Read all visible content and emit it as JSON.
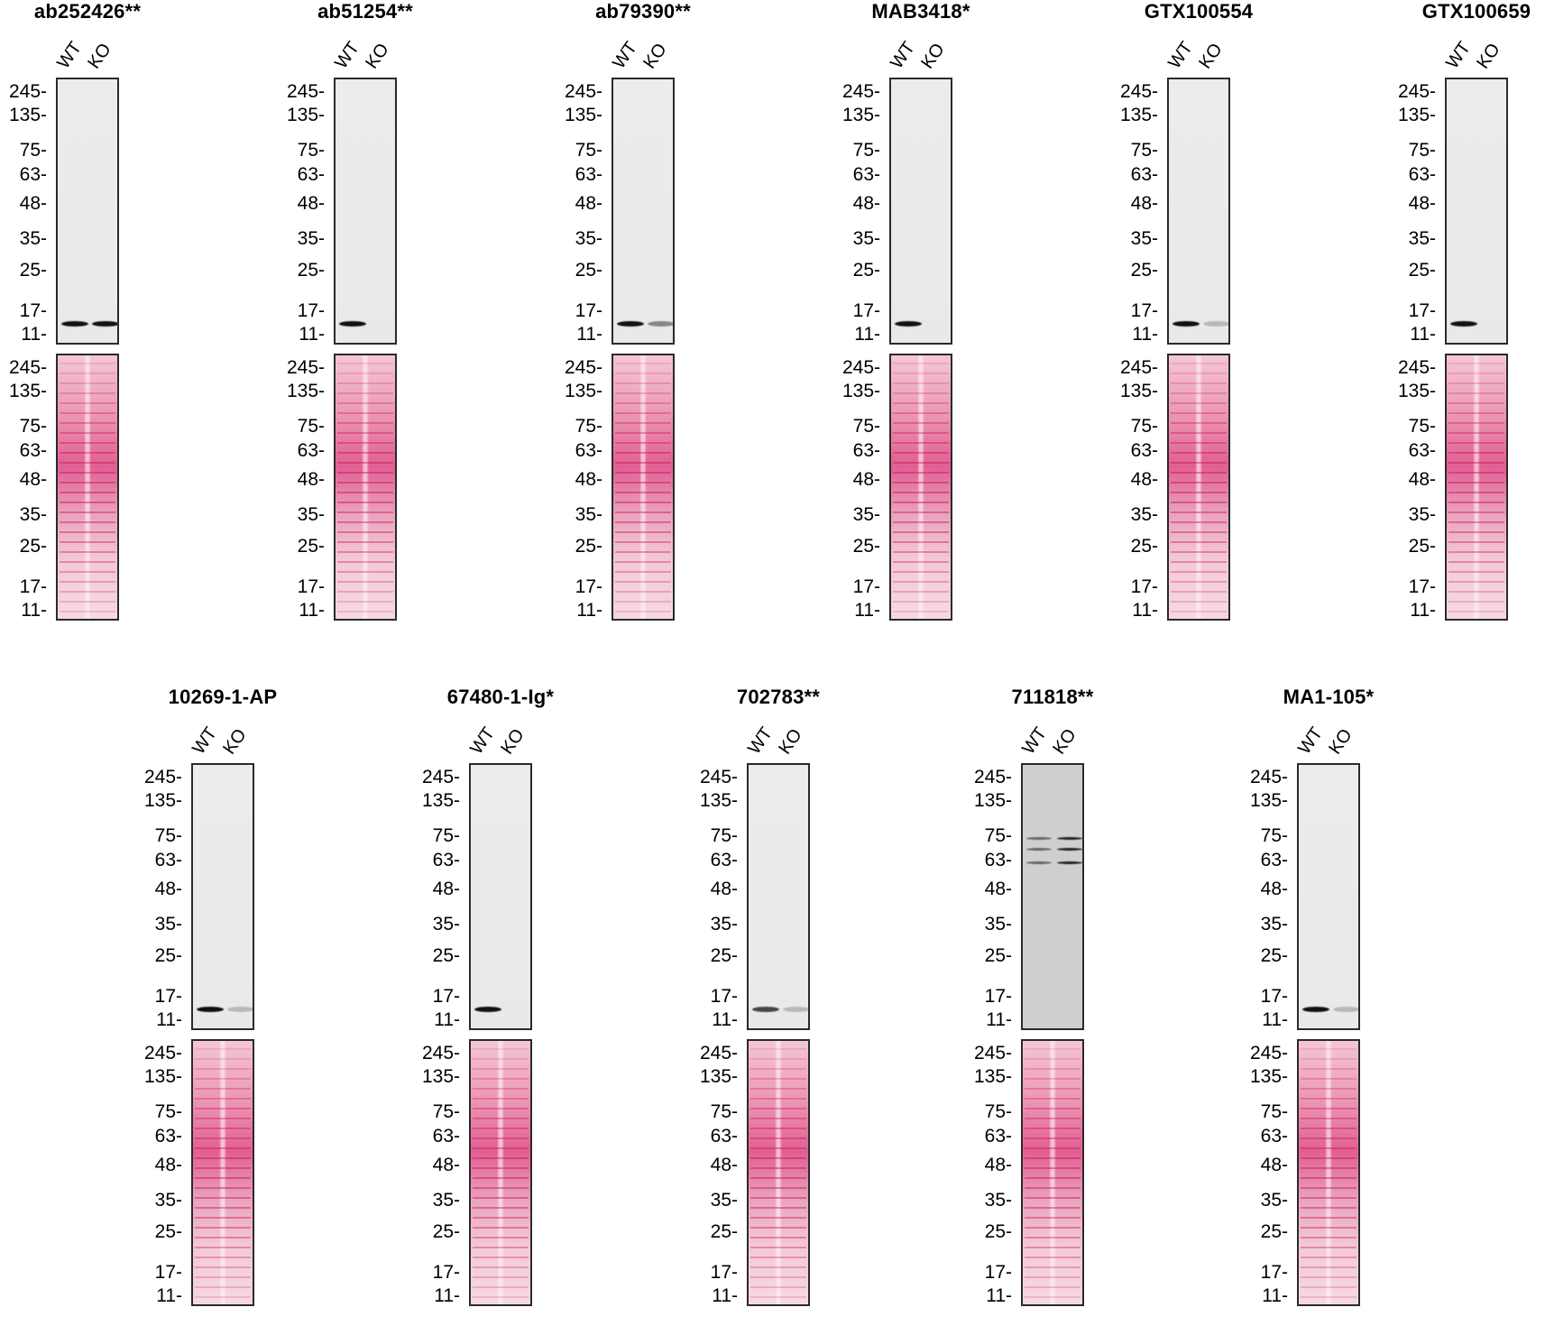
{
  "ladder": [
    "245",
    "135",
    "75",
    "63",
    "48",
    "35",
    "25",
    "17",
    "11"
  ],
  "lane_labels": [
    "WT",
    "KO"
  ],
  "panels": [
    {
      "antibody": "ab252426**",
      "wt_band": "strong",
      "ko_band": "strong"
    },
    {
      "antibody": "ab51254**",
      "wt_band": "strong",
      "ko_band": "none"
    },
    {
      "antibody": "ab79390**",
      "wt_band": "strong",
      "ko_band": "weak"
    },
    {
      "antibody": "MAB3418*",
      "wt_band": "strong",
      "ko_band": "none"
    },
    {
      "antibody": "GTX100554",
      "wt_band": "strong",
      "ko_band": "faint"
    },
    {
      "antibody": "GTX100659",
      "wt_band": "strong",
      "ko_band": "none"
    },
    {
      "antibody": "10269-1-AP",
      "wt_band": "strong",
      "ko_band": "faint"
    },
    {
      "antibody": "67480-1-Ig*",
      "wt_band": "strong",
      "ko_band": "none"
    },
    {
      "antibody": "702783**",
      "wt_band": "medium",
      "ko_band": "faint"
    },
    {
      "antibody": "711818**",
      "wt_band": "none",
      "ko_band": "none",
      "nonspecific_bands": true
    },
    {
      "antibody": "MA1-105*",
      "wt_band": "strong",
      "ko_band": "faint"
    }
  ],
  "colors": {
    "wb_background": "#ececec",
    "ponceau_stain": "#e15f92",
    "band": "#111111",
    "frame": "#2a2a2a"
  }
}
